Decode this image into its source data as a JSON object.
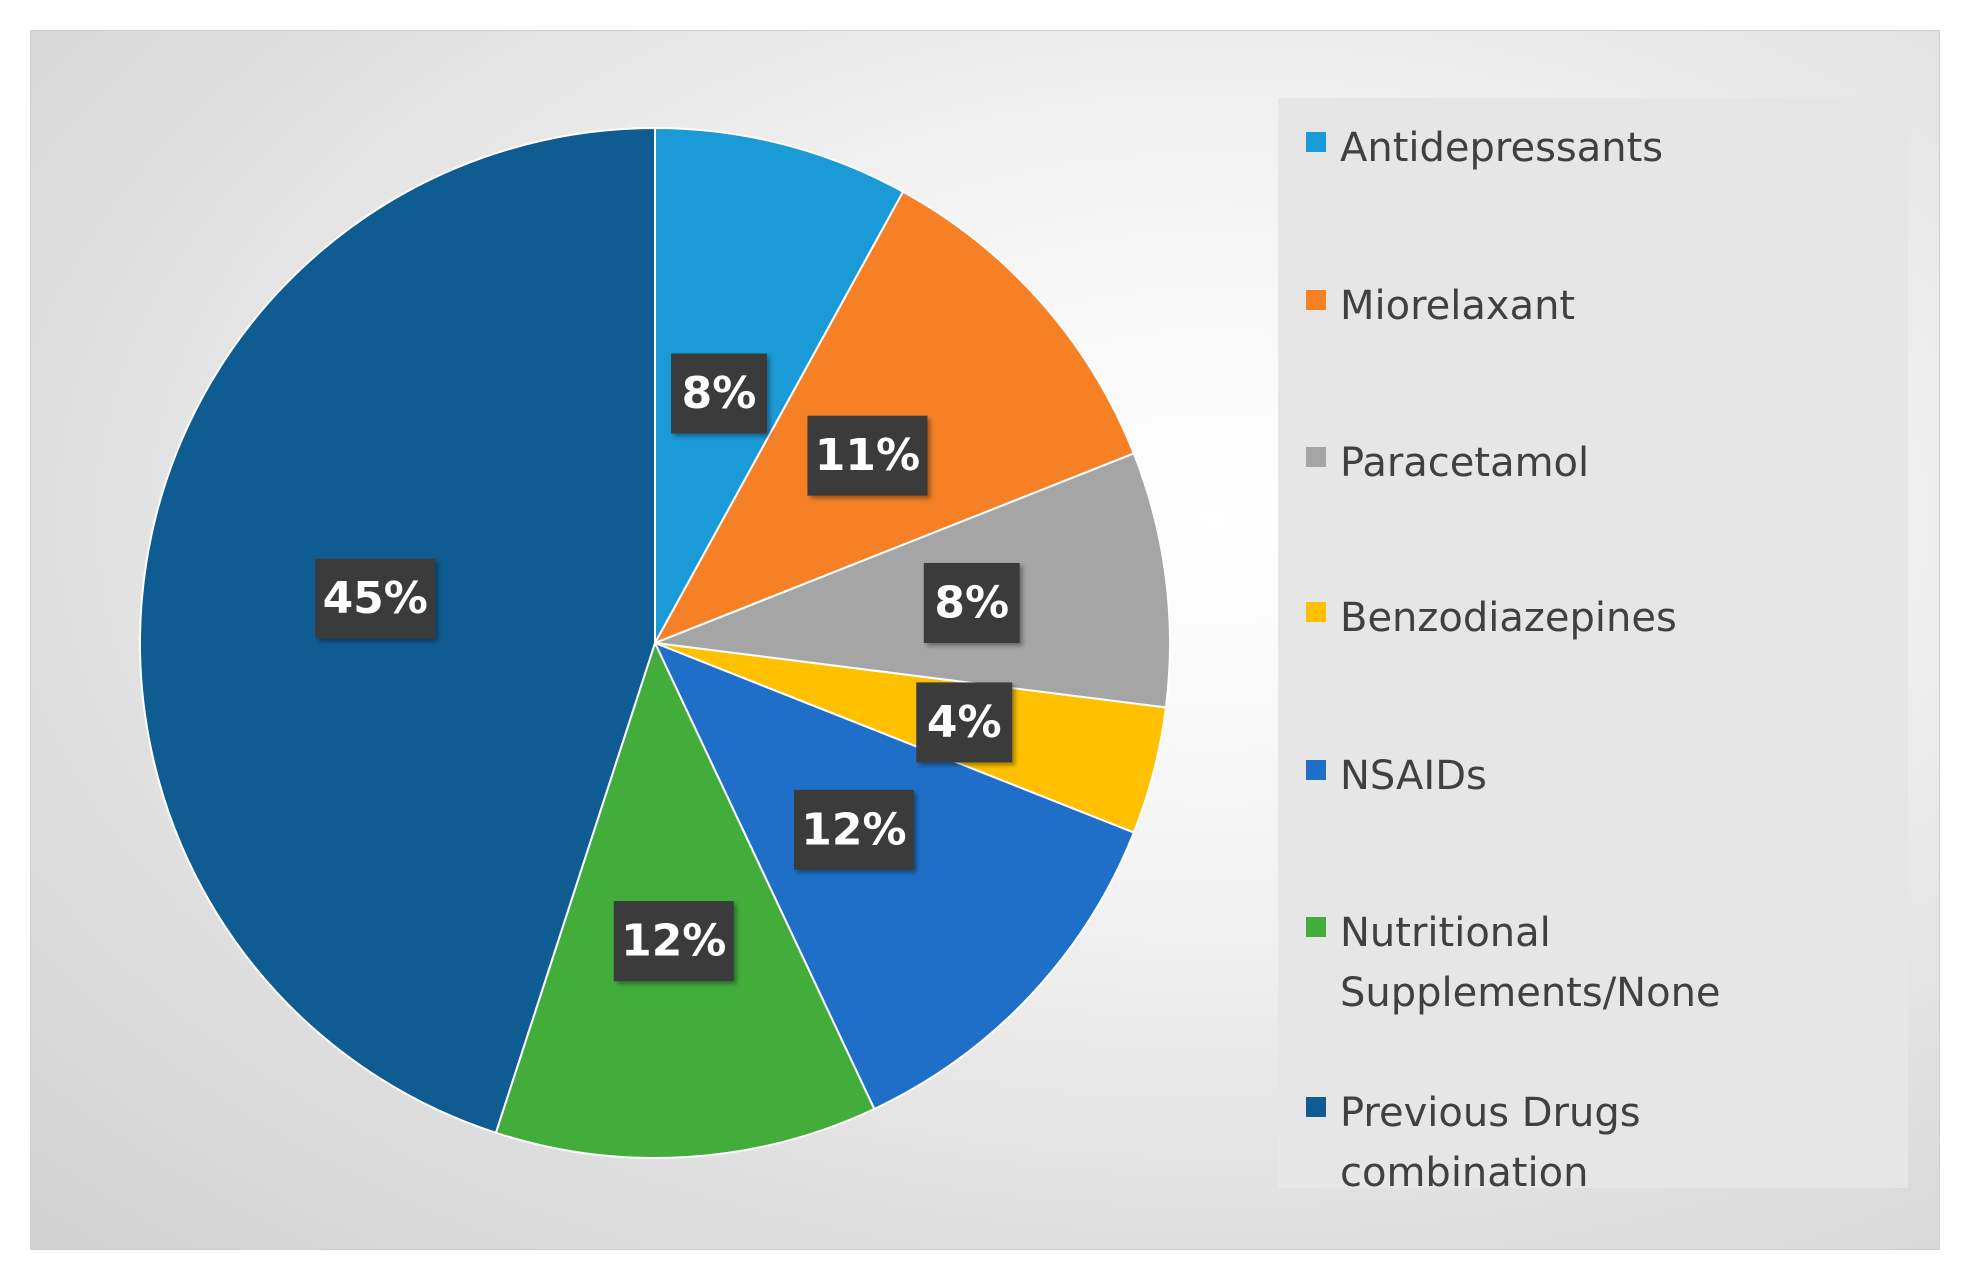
{
  "chart_data": {
    "type": "pie",
    "title": "",
    "start_angle_deg": 0,
    "direction": "clockwise",
    "slices": [
      {
        "label": "Antidepressants",
        "value": 8,
        "display": "8%",
        "color": "#1a9ad6"
      },
      {
        "label": "Miorelaxant",
        "value": 11,
        "display": "11%",
        "color": "#f58025"
      },
      {
        "label": "Paracetamol",
        "value": 8,
        "display": "8%",
        "color": "#a5a5a5"
      },
      {
        "label": "Benzodiazepines",
        "value": 4,
        "display": "4%",
        "color": "#ffc000"
      },
      {
        "label": "NSAIDs",
        "value": 12,
        "display": "12%",
        "color": "#1f6fc8"
      },
      {
        "label": "Nutritional Supplements/None",
        "value": 12,
        "display": "12%",
        "color": "#43ad3c"
      },
      {
        "label": "Previous Drugs combination",
        "value": 45,
        "display": "45%",
        "color": "#0f5c92"
      }
    ],
    "legend_position": "right"
  }
}
